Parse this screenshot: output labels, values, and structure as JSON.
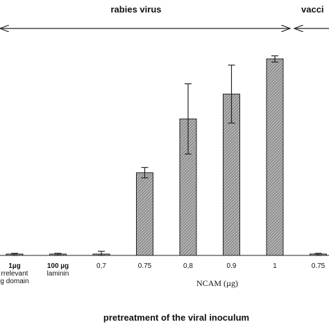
{
  "chart_data": {
    "type": "bar",
    "title": "",
    "xlabel": "pretreatment of the viral inoculum",
    "ylabel": "",
    "ylim": [
      0,
      100
    ],
    "grid": false,
    "group_labels": {
      "rabies": "rabies virus",
      "vaccinia": "vacci"
    },
    "ncam_label": "NCAM (µg)",
    "categories": [
      {
        "line1": "1µg",
        "line2": "rrelevant",
        "line3": "g domain"
      },
      {
        "line1": "100 µg",
        "line2": "laminin",
        "line3": ""
      },
      {
        "line1": "0,7",
        "line2": "",
        "line3": ""
      },
      {
        "line1": "0.75",
        "line2": "",
        "line3": ""
      },
      {
        "line1": "0,8",
        "line2": "",
        "line3": ""
      },
      {
        "line1": "0.9",
        "line2": "",
        "line3": ""
      },
      {
        "line1": "1",
        "line2": "",
        "line3": ""
      },
      {
        "line1": "0.75",
        "line2": "",
        "line3": ""
      }
    ],
    "values": [
      0.5,
      0.5,
      0.5,
      40,
      66,
      78,
      95,
      0.5
    ],
    "errors": [
      0.5,
      0.5,
      1.5,
      2.5,
      17,
      14,
      1.5,
      0.5
    ]
  }
}
